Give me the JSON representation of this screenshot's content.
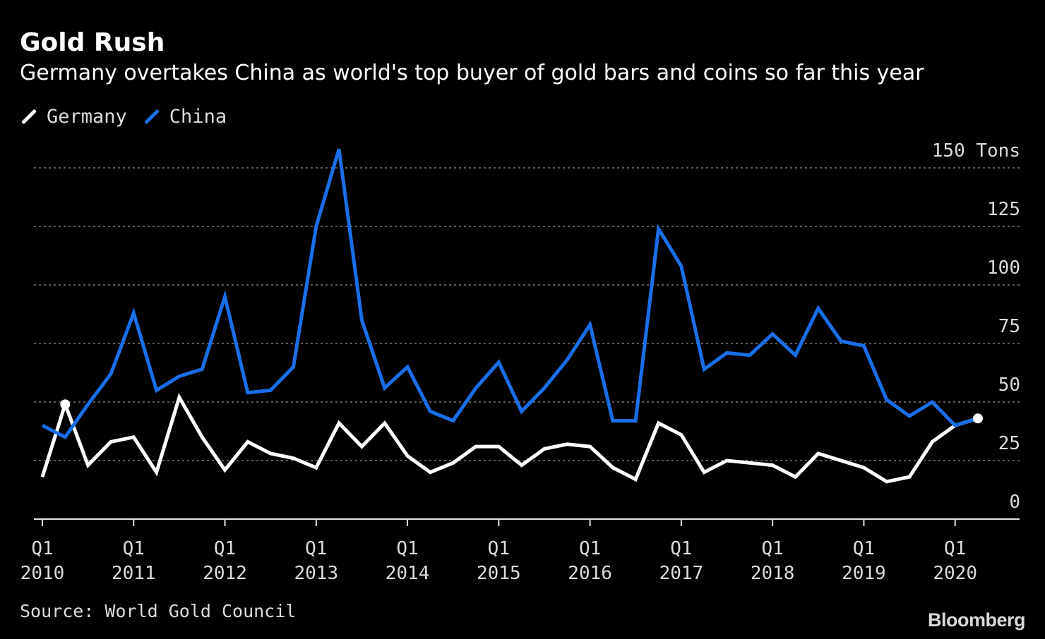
{
  "chart_data": {
    "type": "line",
    "title": "Gold Rush",
    "subtitle": "Germany overtakes China as world's top buyer of gold bars and coins so far this year",
    "unit_label": "Tons",
    "ylim": [
      0,
      150
    ],
    "yticks": [
      0,
      25,
      50,
      75,
      100,
      125,
      150
    ],
    "xticks": [
      {
        "index": 0,
        "q": "Q1",
        "year": "2010"
      },
      {
        "index": 4,
        "q": "Q1",
        "year": "2011"
      },
      {
        "index": 8,
        "q": "Q1",
        "year": "2012"
      },
      {
        "index": 12,
        "q": "Q1",
        "year": "2013"
      },
      {
        "index": 16,
        "q": "Q1",
        "year": "2014"
      },
      {
        "index": 20,
        "q": "Q1",
        "year": "2015"
      },
      {
        "index": 24,
        "q": "Q1",
        "year": "2016"
      },
      {
        "index": 28,
        "q": "Q1",
        "year": "2017"
      },
      {
        "index": 32,
        "q": "Q1",
        "year": "2018"
      },
      {
        "index": 36,
        "q": "Q1",
        "year": "2019"
      },
      {
        "index": 40,
        "q": "Q1",
        "year": "2020"
      }
    ],
    "n_points": 42,
    "series": [
      {
        "name": "Germany",
        "color": "#ffffff",
        "values": [
          18,
          49,
          23,
          33,
          35,
          20,
          52,
          35,
          21,
          33,
          28,
          26,
          22,
          41,
          31,
          41,
          27,
          20,
          24,
          31,
          31,
          23,
          30,
          32,
          31,
          22,
          17,
          41,
          36,
          20,
          25,
          24,
          23,
          18,
          28,
          25,
          22,
          16,
          18,
          33,
          40,
          43
        ]
      },
      {
        "name": "China",
        "color": "#1a6fe8",
        "values": [
          40,
          35,
          49,
          62,
          88,
          55,
          61,
          64,
          95,
          54,
          55,
          65,
          125,
          158,
          85,
          56,
          65,
          46,
          42,
          56,
          67,
          46,
          56,
          68,
          83,
          42,
          42,
          124,
          108,
          64,
          71,
          70,
          79,
          70,
          90,
          76,
          74,
          51,
          44,
          50,
          40,
          43
        ]
      }
    ],
    "source": "Source: World Gold Council",
    "brand": "Bloomberg"
  }
}
